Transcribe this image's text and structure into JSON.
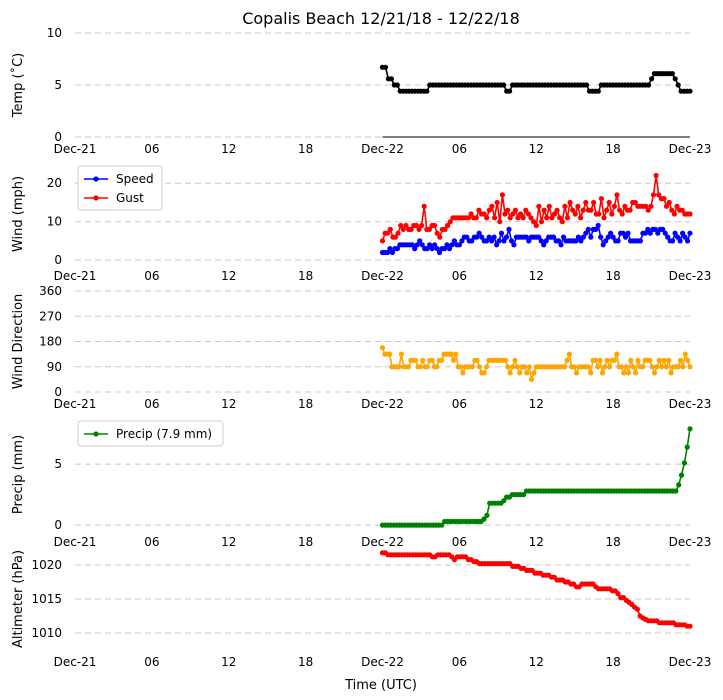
{
  "chart_data": {
    "title": "Copalis Beach 12/21/18 - 12/22/18",
    "xlabel": "Time (UTC)",
    "x_ticks": [
      "Dec-21",
      "06",
      "12",
      "18",
      "Dec-22",
      "06",
      "12",
      "18",
      "Dec-23"
    ],
    "x_range_hours": [
      0,
      48
    ],
    "panels": [
      {
        "id": "temp",
        "type": "line",
        "ylabel": "Temp ($^\\circ$C)",
        "ylabel_display": "Temp (˚C)",
        "ylim": [
          0,
          10
        ],
        "yticks": [
          "0",
          "5",
          "10"
        ],
        "series": [
          {
            "name": "Temp",
            "color": "#000000",
            "step_hours": 0.333,
            "start_hour": 24,
            "values": [
              6.7,
              6.7,
              5.6,
              5.6,
              5.0,
              5.0,
              4.4,
              4.4,
              4.4,
              4.4,
              4.4,
              4.4,
              4.4,
              4.4,
              4.4,
              4.4,
              5.0,
              5.0,
              5.0,
              5.0,
              5.0,
              5.0,
              5.0,
              5.0,
              5.0,
              5.0,
              5.0,
              5.0,
              5.0,
              5.0,
              5.0,
              5.0,
              5.0,
              5.0,
              5.0,
              5.0,
              5.0,
              5.0,
              5.0,
              5.0,
              5.0,
              5.0,
              4.4,
              4.4,
              5.0,
              5.0,
              5.0,
              5.0,
              5.0,
              5.0,
              5.0,
              5.0,
              5.0,
              5.0,
              5.0,
              5.0,
              5.0,
              5.0,
              5.0,
              5.0,
              5.0,
              5.0,
              5.0,
              5.0,
              5.0,
              5.0,
              5.0,
              5.0,
              5.0,
              5.0,
              4.4,
              4.4,
              4.4,
              4.4,
              5.0,
              5.0,
              5.0,
              5.0,
              5.0,
              5.0,
              5.0,
              5.0,
              5.0,
              5.0,
              5.0,
              5.0,
              5.0,
              5.0,
              5.0,
              5.0,
              5.0,
              5.6,
              6.1,
              6.1,
              6.1,
              6.1,
              6.1,
              6.1,
              6.1,
              5.6,
              5.0,
              4.4,
              4.4,
              4.4,
              4.4
            ]
          }
        ]
      },
      {
        "id": "wind",
        "type": "line",
        "ylabel": "Wind (mph)",
        "ylim": [
          -1,
          25
        ],
        "yticks": [
          "0",
          "10",
          "20"
        ],
        "ytick_values": [
          0,
          10,
          20
        ],
        "legend": [
          "Speed",
          "Gust"
        ],
        "series": [
          {
            "name": "Speed",
            "color": "#0000ff",
            "step_hours": 0.333,
            "start_hour": 24,
            "values": [
              2,
              2,
              2,
              3,
              2,
              3,
              3,
              4,
              4,
              4,
              4,
              4,
              4,
              3,
              4,
              5,
              4,
              3,
              3,
              4,
              3,
              4,
              3,
              2,
              3,
              3,
              4,
              3,
              4,
              5,
              4,
              4,
              5,
              6,
              6,
              5,
              5,
              6,
              6,
              7,
              6,
              5,
              5,
              6,
              5,
              6,
              4,
              5,
              7,
              5,
              6,
              8,
              5,
              4,
              6,
              6,
              6,
              6,
              6,
              5,
              6,
              6,
              6,
              6,
              5,
              4,
              5,
              6,
              6,
              6,
              5,
              5,
              4,
              6,
              5,
              5,
              5,
              5,
              5,
              6,
              5,
              6,
              7,
              8,
              6,
              8,
              8,
              9,
              6,
              4,
              5,
              6,
              7,
              6,
              5,
              5,
              7,
              7,
              6,
              7,
              5,
              5,
              5,
              5,
              5,
              7,
              7,
              8,
              7,
              8,
              8,
              7,
              8,
              8,
              7,
              6,
              5,
              5,
              7,
              6,
              5,
              7,
              6,
              5,
              7
            ]
          },
          {
            "name": "Gust",
            "color": "#ff0000",
            "step_hours": 0.333,
            "start_hour": 24,
            "values": [
              5,
              7,
              7,
              8,
              6,
              6,
              7,
              9,
              8,
              9,
              8,
              8,
              9,
              9,
              8,
              9,
              14,
              8,
              8,
              9,
              9,
              7,
              6,
              8,
              8,
              9,
              10,
              11,
              11,
              11,
              11,
              11,
              11,
              11,
              12,
              11,
              11,
              13,
              12,
              12,
              11,
              13,
              14,
              11,
              15,
              10,
              17,
              12,
              13,
              11,
              12,
              13,
              11,
              12,
              11,
              13,
              12,
              11,
              10,
              9,
              14,
              10,
              13,
              11,
              14,
              11,
              12,
              13,
              11,
              10,
              14,
              11,
              15,
              13,
              12,
              14,
              11,
              13,
              15,
              13,
              13,
              15,
              12,
              12,
              16,
              11,
              13,
              15,
              12,
              14,
              17,
              13,
              12,
              14,
              13,
              13,
              15,
              15,
              14,
              14,
              14,
              14,
              13,
              14,
              17,
              22,
              17,
              16,
              16,
              14,
              15,
              13,
              12,
              14,
              13,
              13,
              12,
              12,
              12
            ]
          }
        ]
      },
      {
        "id": "wdir",
        "type": "line",
        "ylabel": "Wind Direction",
        "ylim": [
          0,
          360
        ],
        "yticks": [
          "0",
          "90",
          "180",
          "270",
          "360"
        ],
        "ytick_values": [
          0,
          90,
          180,
          270,
          360
        ],
        "series": [
          {
            "name": "Direction",
            "color": "#ffa500",
            "step_hours": 0.333,
            "start_hour": 24,
            "values": [
              158,
              135,
              135,
              135,
              90,
              90,
              90,
              90,
              135,
              90,
              90,
              90,
              113,
              113,
              113,
              90,
              90,
              113,
              90,
              90,
              113,
              113,
              90,
              90,
              113,
              113,
              135,
              135,
              135,
              135,
              113,
              135,
              90,
              90,
              68,
              90,
              90,
              90,
              90,
              113,
              113,
              90,
              68,
              68,
              90,
              113,
              113,
              113,
              113,
              113,
              113,
              113,
              113,
              90,
              68,
              90,
              113,
              90,
              68,
              90,
              90,
              68,
              90,
              45,
              68,
              90,
              90,
              90,
              90,
              90,
              90,
              90,
              90,
              90,
              90,
              90,
              90,
              90,
              113,
              135,
              90,
              90,
              68,
              90,
              90,
              90,
              90,
              90,
              68,
              113,
              113,
              90,
              113,
              68,
              90,
              113,
              90,
              113,
              113,
              135,
              90,
              90,
              68,
              90,
              68,
              113,
              90,
              68,
              113,
              90,
              90,
              113,
              113,
              113,
              90,
              68,
              90,
              113,
              90,
              113,
              90,
              113,
              68,
              90,
              90,
              90,
              113,
              90,
              135,
              113,
              90
            ]
          }
        ]
      },
      {
        "id": "precip",
        "type": "line",
        "ylabel": "Precip (mm)",
        "ylim": [
          -0.4,
          8.7
        ],
        "yticks": [
          "0",
          "5"
        ],
        "ytick_values": [
          0,
          5
        ],
        "legend": [
          "Precip (7.9 mm)"
        ],
        "series": [
          {
            "name": "Precip (7.9 mm)",
            "color": "#008000",
            "step_hours": 0.333,
            "start_hour": 24,
            "values": [
              0,
              0,
              0,
              0,
              0,
              0,
              0,
              0,
              0,
              0,
              0,
              0,
              0,
              0,
              0,
              0,
              0,
              0,
              0,
              0,
              0,
              0,
              0.3,
              0.3,
              0.3,
              0.3,
              0.3,
              0.3,
              0.3,
              0.3,
              0.3,
              0.3,
              0.3,
              0.3,
              0.3,
              0.3,
              0.5,
              0.8,
              1.8,
              1.8,
              1.8,
              1.8,
              1.8,
              2.0,
              2.3,
              2.3,
              2.5,
              2.5,
              2.5,
              2.5,
              2.5,
              2.8,
              2.8,
              2.8,
              2.8,
              2.8,
              2.8,
              2.8,
              2.8,
              2.8,
              2.8,
              2.8,
              2.8,
              2.8,
              2.8,
              2.8,
              2.8,
              2.8,
              2.8,
              2.8,
              2.8,
              2.8,
              2.8,
              2.8,
              2.8,
              2.8,
              2.8,
              2.8,
              2.8,
              2.8,
              2.8,
              2.8,
              2.8,
              2.8,
              2.8,
              2.8,
              2.8,
              2.8,
              2.8,
              2.8,
              2.8,
              2.8,
              2.8,
              2.8,
              2.8,
              2.8,
              2.8,
              2.8,
              2.8,
              2.8,
              2.8,
              2.8,
              2.8,
              2.8,
              2.8,
              3.3,
              4.1,
              5.1,
              6.4,
              7.9
            ]
          }
        ]
      },
      {
        "id": "altim",
        "type": "line",
        "ylabel": "Altimeter (hPa)",
        "ylim": [
          1007.5,
          1022.5
        ],
        "yticks": [
          "1010",
          "1015",
          "1020"
        ],
        "ytick_values": [
          1010,
          1015,
          1020
        ],
        "series": [
          {
            "name": "Altimeter",
            "color": "#ff0000",
            "step_hours": 0.333,
            "start_hour": 24,
            "values": [
              1021.8,
              1021.8,
              1021.5,
              1021.5,
              1021.5,
              1021.5,
              1021.5,
              1021.5,
              1021.5,
              1021.5,
              1021.5,
              1021.5,
              1021.5,
              1021.5,
              1021.5,
              1021.5,
              1021.5,
              1021.5,
              1021.2,
              1021.2,
              1021.5,
              1021.5,
              1021.5,
              1021.5,
              1021.5,
              1021.2,
              1020.8,
              1021.2,
              1021.2,
              1021.2,
              1021.2,
              1020.8,
              1020.8,
              1020.5,
              1020.5,
              1020.2,
              1020.2,
              1020.2,
              1020.2,
              1020.2,
              1020.2,
              1020.2,
              1020.2,
              1020.2,
              1020.2,
              1020.2,
              1020.2,
              1019.8,
              1019.8,
              1019.8,
              1019.5,
              1019.5,
              1019.2,
              1019.2,
              1019.2,
              1018.8,
              1018.8,
              1018.8,
              1018.5,
              1018.5,
              1018.5,
              1018.2,
              1018.2,
              1017.8,
              1017.8,
              1017.8,
              1017.5,
              1017.5,
              1017.2,
              1017.2,
              1016.8,
              1016.8,
              1017.2,
              1017.2,
              1017.2,
              1017.2,
              1017.2,
              1016.8,
              1016.5,
              1016.5,
              1016.5,
              1016.5,
              1016.5,
              1016.2,
              1016.2,
              1015.8,
              1015.2,
              1015.2,
              1014.8,
              1014.5,
              1014.2,
              1013.8,
              1013.5,
              1012.5,
              1012.2,
              1012.0,
              1011.8,
              1011.8,
              1011.8,
              1011.8,
              1011.5,
              1011.5,
              1011.5,
              1011.5,
              1011.5,
              1011.5,
              1011.2,
              1011.2,
              1011.2,
              1011.2,
              1011.0,
              1011.0
            ]
          }
        ]
      }
    ]
  }
}
